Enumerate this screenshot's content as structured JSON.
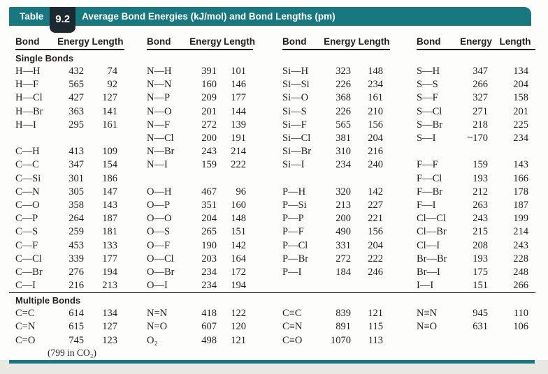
{
  "banner": {
    "label": "Table",
    "number": "9.2",
    "title": "Average Bond Energies (kJ/mol) and Bond Lengths (pm)"
  },
  "column_headers": [
    "Bond",
    "Energy",
    "Length"
  ],
  "sections": [
    {
      "label": "Single Bonds",
      "rows": [
        [
          [
            "H—H",
            "432",
            "74"
          ],
          [
            "N—H",
            "391",
            "101"
          ],
          [
            "Si—H",
            "323",
            "148"
          ],
          [
            "S—H",
            "347",
            "134"
          ]
        ],
        [
          [
            "H—F",
            "565",
            "92"
          ],
          [
            "N—N",
            "160",
            "146"
          ],
          [
            "Si—Si",
            "226",
            "234"
          ],
          [
            "S—S",
            "266",
            "204"
          ]
        ],
        [
          [
            "H—Cl",
            "427",
            "127"
          ],
          [
            "N—P",
            "209",
            "177"
          ],
          [
            "Si—O",
            "368",
            "161"
          ],
          [
            "S—F",
            "327",
            "158"
          ]
        ],
        [
          [
            "H—Br",
            "363",
            "141"
          ],
          [
            "N—O",
            "201",
            "144"
          ],
          [
            "Si—S",
            "226",
            "210"
          ],
          [
            "S—Cl",
            "271",
            "201"
          ]
        ],
        [
          [
            "H—I",
            "295",
            "161"
          ],
          [
            "N—F",
            "272",
            "139"
          ],
          [
            "Si—F",
            "565",
            "156"
          ],
          [
            "S—Br",
            "218",
            "225"
          ]
        ],
        [
          null,
          [
            "N—Cl",
            "200",
            "191"
          ],
          [
            "Si—Cl",
            "381",
            "204"
          ],
          [
            "S—I",
            "~170",
            "234"
          ]
        ],
        [
          [
            "C—H",
            "413",
            "109"
          ],
          [
            "N—Br",
            "243",
            "214"
          ],
          [
            "Si—Br",
            "310",
            "216"
          ],
          null
        ],
        [
          [
            "C—C",
            "347",
            "154"
          ],
          [
            "N—I",
            "159",
            "222"
          ],
          [
            "Si—I",
            "234",
            "240"
          ],
          [
            "F—F",
            "159",
            "143"
          ]
        ],
        [
          [
            "C—Si",
            "301",
            "186"
          ],
          null,
          null,
          [
            "F—Cl",
            "193",
            "166"
          ]
        ],
        [
          [
            "C—N",
            "305",
            "147"
          ],
          [
            "O—H",
            "467",
            "96"
          ],
          [
            "P—H",
            "320",
            "142"
          ],
          [
            "F—Br",
            "212",
            "178"
          ]
        ],
        [
          [
            "C—O",
            "358",
            "143"
          ],
          [
            "O—P",
            "351",
            "160"
          ],
          [
            "P—Si",
            "213",
            "227"
          ],
          [
            "F—I",
            "263",
            "187"
          ]
        ],
        [
          [
            "C—P",
            "264",
            "187"
          ],
          [
            "O—O",
            "204",
            "148"
          ],
          [
            "P—P",
            "200",
            "221"
          ],
          [
            "Cl—Cl",
            "243",
            "199"
          ]
        ],
        [
          [
            "C—S",
            "259",
            "181"
          ],
          [
            "O—S",
            "265",
            "151"
          ],
          [
            "P—F",
            "490",
            "156"
          ],
          [
            "Cl—Br",
            "215",
            "214"
          ]
        ],
        [
          [
            "C—F",
            "453",
            "133"
          ],
          [
            "O—F",
            "190",
            "142"
          ],
          [
            "P—Cl",
            "331",
            "204"
          ],
          [
            "Cl—I",
            "208",
            "243"
          ]
        ],
        [
          [
            "C—Cl",
            "339",
            "177"
          ],
          [
            "O—Cl",
            "203",
            "164"
          ],
          [
            "P—Br",
            "272",
            "222"
          ],
          [
            "Br—Br",
            "193",
            "228"
          ]
        ],
        [
          [
            "C—Br",
            "276",
            "194"
          ],
          [
            "O—Br",
            "234",
            "172"
          ],
          [
            "P—I",
            "184",
            "246"
          ],
          [
            "Br—I",
            "175",
            "248"
          ]
        ],
        [
          [
            "C—I",
            "216",
            "213"
          ],
          [
            "O—I",
            "234",
            "194"
          ],
          null,
          [
            "I—I",
            "151",
            "266"
          ]
        ]
      ]
    },
    {
      "label": "Multiple Bonds",
      "rows": [
        [
          [
            "C=C",
            "614",
            "134"
          ],
          [
            "N=N",
            "418",
            "122"
          ],
          [
            "C≡C",
            "839",
            "121"
          ],
          [
            "N≡N",
            "945",
            "110"
          ]
        ],
        [
          [
            "C=N",
            "615",
            "127"
          ],
          [
            "N=O",
            "607",
            "120"
          ],
          [
            "C≡N",
            "891",
            "115"
          ],
          [
            "N≡O",
            "631",
            "106"
          ]
        ],
        [
          [
            "C=O",
            "745",
            "123"
          ],
          [
            "O₂",
            "498",
            "121"
          ],
          [
            "C≡O",
            "1070",
            "113"
          ],
          null
        ]
      ],
      "footnote": "(799 in CO₂)"
    }
  ],
  "colors": {
    "banner_teal": "#17787f",
    "number_box": "#1d2931",
    "rule_black": "#1a1a1a",
    "bottom_strip": "#e9e8e3"
  }
}
